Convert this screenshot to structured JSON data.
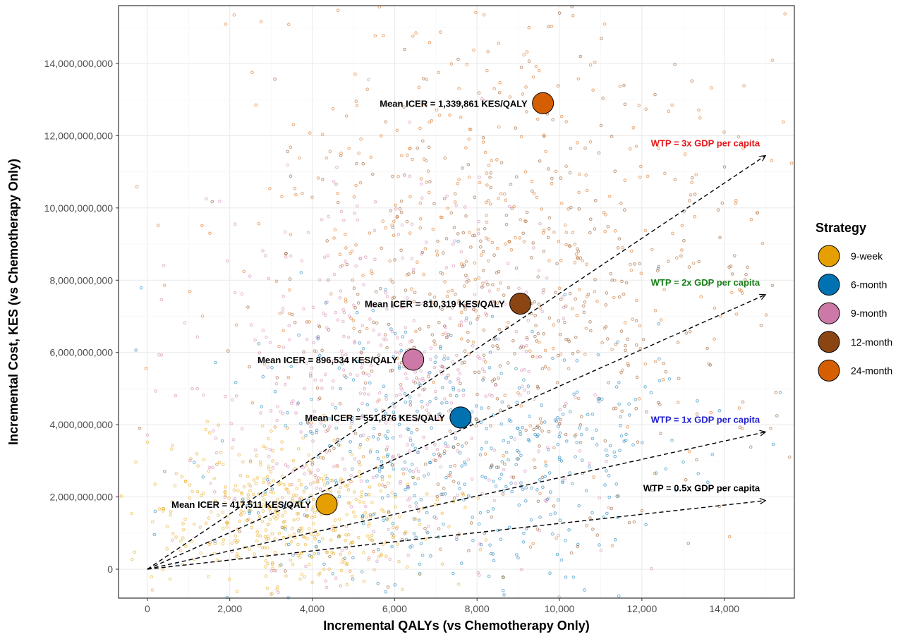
{
  "chart_data": {
    "type": "scatter",
    "xlabel": "Incremental QALYs (vs Chemotherapy Only)",
    "ylabel": "Incremental Cost, KES (vs Chemotherapy Only)",
    "xlim": [
      -700,
      15700
    ],
    "ylim": [
      -800000000,
      15600000000
    ],
    "x_ticks": [
      0,
      2000,
      4000,
      6000,
      8000,
      10000,
      12000,
      14000
    ],
    "x_tick_labels": [
      "0",
      "2,000",
      "4,000",
      "6,000",
      "8,000",
      "10,000",
      "12,000",
      "14,000"
    ],
    "y_ticks": [
      0,
      2000000000,
      4000000000,
      6000000000,
      8000000000,
      10000000000,
      12000000000,
      14000000000
    ],
    "y_tick_labels": [
      "0",
      "2,000,000,000",
      "4,000,000,000",
      "6,000,000,000",
      "8,000,000,000",
      "10,000,000,000",
      "12,000,000,000",
      "14,000,000,000"
    ],
    "grid": true,
    "legend": {
      "title": "Strategy",
      "position": "right",
      "items": [
        {
          "label": "9-week",
          "color": "#E69F00"
        },
        {
          "label": "6-month",
          "color": "#0072B2"
        },
        {
          "label": "9-month",
          "color": "#CC79A7"
        },
        {
          "label": "12-month",
          "color": "#8B4513"
        },
        {
          "label": "24-month",
          "color": "#D55E00"
        }
      ]
    },
    "series": [
      {
        "name": "9-week",
        "color": "#E69F00",
        "mean": {
          "x": 4350,
          "y": 1800000000
        },
        "annotation": "Mean ICER =  417,511 KES/QALY",
        "cloud": {
          "x_mean": 3400,
          "x_sd": 1700,
          "y_mean": 1500000000,
          "y_sd": 1100000000
        }
      },
      {
        "name": "6-month",
        "color": "#0072B2",
        "mean": {
          "x": 7600,
          "y": 4200000000
        },
        "annotation": "Mean ICER =   551,876 KES/QALY",
        "cloud": {
          "x_mean": 7400,
          "x_sd": 2700,
          "y_mean": 3200000000,
          "y_sd": 2000000000
        }
      },
      {
        "name": "9-month",
        "color": "#CC79A7",
        "mean": {
          "x": 6450,
          "y": 5800000000
        },
        "annotation": "Mean ICER =   896,534 KES/QALY",
        "cloud": {
          "x_mean": 5800,
          "x_sd": 2500,
          "y_mean": 5200000000,
          "y_sd": 2500000000
        }
      },
      {
        "name": "12-month",
        "color": "#8B4513",
        "mean": {
          "x": 9050,
          "y": 7350000000
        },
        "annotation": "Mean ICER =   810,319 KES/QALY",
        "cloud": {
          "x_mean": 8700,
          "x_sd": 3000,
          "y_mean": 6800000000,
          "y_sd": 3000000000
        }
      },
      {
        "name": "24-month",
        "color": "#D55E00",
        "mean": {
          "x": 9600,
          "y": 12900000000
        },
        "annotation": "Mean ICER = 1,339,861 KES/QALY",
        "cloud": {
          "x_mean": 8500,
          "x_sd": 3500,
          "y_mean": 9500000000,
          "y_sd": 3600000000
        }
      }
    ],
    "wtp_lines": [
      {
        "label": "WTP = 3x GDP per capita",
        "color": "#E41A1C",
        "x_end": 15000,
        "y_end": 11450000000
      },
      {
        "label": "WTP = 2x GDP per capita",
        "color": "#1A7F1A",
        "x_end": 15000,
        "y_end": 7600000000
      },
      {
        "label": "WTP = 1x GDP per capita",
        "color": "#1F1FCC",
        "x_end": 15000,
        "y_end": 3800000000
      },
      {
        "label": "WTP = 0.5x GDP per capita",
        "color": "#000000",
        "x_end": 15000,
        "y_end": 1900000000
      }
    ]
  }
}
